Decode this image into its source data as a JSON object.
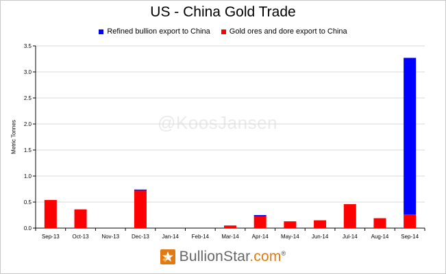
{
  "chart_data": {
    "type": "bar",
    "stacked": true,
    "title": "US - China Gold Trade",
    "ylabel": "Metric Tonnes",
    "xlabel": "",
    "ylim": [
      0,
      3.5
    ],
    "yticks": [
      "0.0",
      "0.5",
      "1.0",
      "1.5",
      "2.0",
      "2.5",
      "3.0",
      "3.5"
    ],
    "grid": true,
    "legend_position": "top-right",
    "categories": [
      "Sep-13",
      "Oct-13",
      "Nov-13",
      "Dec-13",
      "Jan-14",
      "Feb-14",
      "Mar-14",
      "Apr-14",
      "May-14",
      "Jun-14",
      "Jul-14",
      "Aug-14",
      "Sep-14"
    ],
    "series": [
      {
        "name": "Gold ores and dore export to China",
        "color": "#ff0000",
        "values": [
          0.54,
          0.36,
          0.0,
          0.72,
          0.0,
          0.0,
          0.05,
          0.23,
          0.13,
          0.15,
          0.46,
          0.19,
          0.26
        ]
      },
      {
        "name": "Refined bullion export to China",
        "color": "#0000ff",
        "values": [
          0.0,
          0.0,
          0.0,
          0.02,
          0.0,
          0.0,
          0.0,
          0.02,
          0.0,
          0.0,
          0.0,
          0.0,
          3.01
        ]
      }
    ]
  },
  "legend": [
    {
      "label": "Refined bullion export to China",
      "color": "#0000ff"
    },
    {
      "label": "Gold ores and dore export to China",
      "color": "#ff0000"
    }
  ],
  "watermark": "@KoosJansen",
  "logo": {
    "name_part1": "BullionStar",
    "name_part2": ".com",
    "reg": "®",
    "icon": "bullionstar-star-icon"
  }
}
